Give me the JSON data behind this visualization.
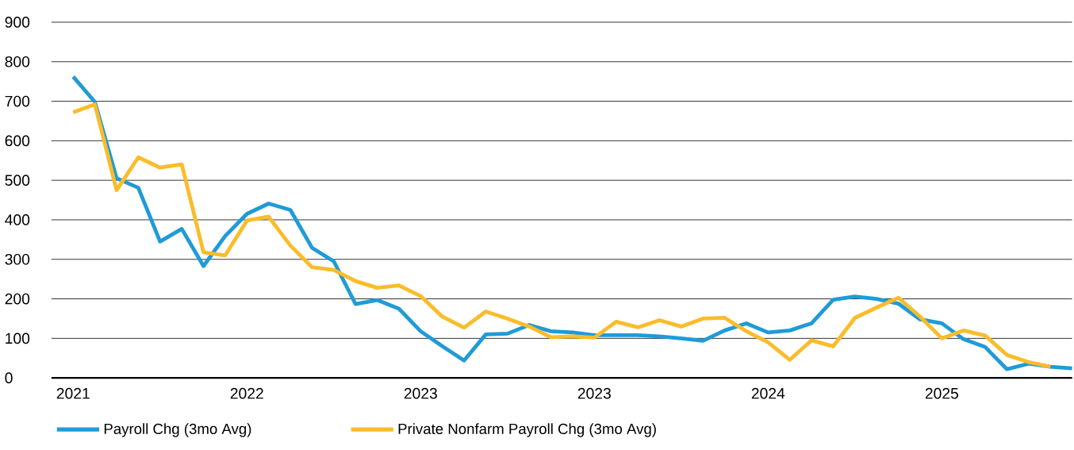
{
  "chart_data": {
    "type": "line",
    "categories": [
      "2021",
      null,
      null,
      null,
      null,
      null,
      null,
      null,
      "2022",
      null,
      null,
      null,
      null,
      null,
      null,
      null,
      "2023",
      null,
      null,
      null,
      null,
      null,
      null,
      null,
      "2023",
      null,
      null,
      null,
      null,
      null,
      null,
      null,
      "2024",
      null,
      null,
      null,
      null,
      null,
      null,
      null,
      "2025",
      null,
      null,
      null,
      null,
      null,
      null
    ],
    "series": [
      {
        "name": "Payroll Chg (3mo Avg)",
        "color": "#1f9bd7",
        "values": [
          762,
          698,
          505,
          481,
          345,
          377,
          283,
          359,
          415,
          441,
          425,
          329,
          295,
          187,
          197,
          175,
          118,
          80,
          44,
          110,
          112,
          134,
          118,
          115,
          108,
          108,
          108,
          105,
          100,
          94,
          120,
          138,
          115,
          120,
          138,
          198,
          206,
          200,
          188,
          148,
          138,
          98,
          78,
          22,
          36,
          28,
          24
        ]
      },
      {
        "name": "Private Nonfarm Payroll Chg (3mo Avg)",
        "color": "#fbbc2a",
        "values": [
          672,
          692,
          475,
          558,
          532,
          540,
          318,
          310,
          398,
          408,
          335,
          280,
          273,
          245,
          228,
          234,
          207,
          155,
          127,
          168,
          150,
          130,
          103,
          105,
          102,
          142,
          128,
          146,
          130,
          150,
          152,
          118,
          90,
          46,
          95,
          80,
          152,
          178,
          203,
          155,
          100,
          120,
          107,
          58,
          40,
          28,
          null
        ]
      }
    ],
    "ylim": [
      0,
      900
    ],
    "yticks": [
      0,
      100,
      200,
      300,
      400,
      500,
      600,
      700,
      800,
      900
    ],
    "grid": "y",
    "legend": "bottom left",
    "marker": "none",
    "line_style": "solid"
  }
}
